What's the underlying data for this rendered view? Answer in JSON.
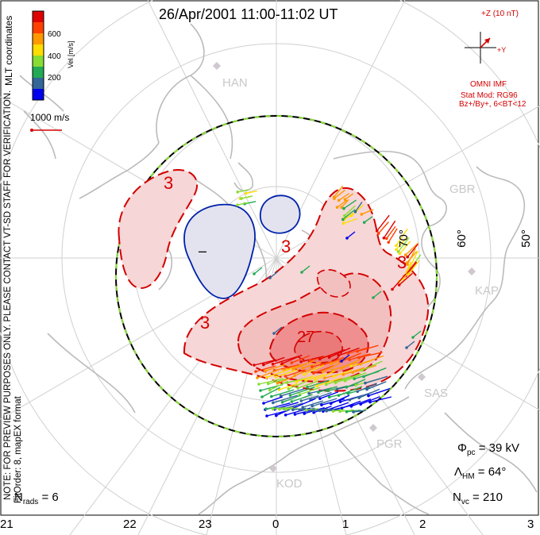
{
  "title": "26/Apr/2001 11:00-11:02 UT",
  "side_notes": {
    "coordinates": "MLT coordinates",
    "preview": "NOTE: FOR PREVIEW PURPOSES ONLY. PLEASE CONTACT VT-SD STAFF FOR VERIFICATION.",
    "fit": "FitOrder: 8, mapEX format"
  },
  "colorbar": {
    "label": "Vel [m/s]",
    "ticks": [
      "600",
      "400",
      "200"
    ],
    "colors": [
      "#e00000",
      "#ff4000",
      "#ff9900",
      "#ffdd00",
      "#88dd33",
      "#22aa55",
      "#336699",
      "#0000ee"
    ]
  },
  "vector_scale": {
    "label": "1000 m/s"
  },
  "imf": {
    "bz_label": "+Z (10 nT)",
    "by_label": "+Y",
    "source": "OMNI IMF",
    "model": "Stat Mod: RG96",
    "condition": "Bz+/By+, 6<BT<12"
  },
  "stations": [
    "HAN",
    "GBR",
    "KAP",
    "SAS",
    "PGR",
    "KOD"
  ],
  "latitude_labels": [
    "70°",
    "60°",
    "50°"
  ],
  "contours": {
    "negative_label": "–",
    "positive_labels": [
      "3",
      "3",
      "3",
      "3"
    ],
    "max_label": "27"
  },
  "stats": {
    "nrads_symbol": "N",
    "nrads_sub": "rads",
    "nrads_value": "= 6",
    "phi_symbol": "Φ",
    "phi_sub": "pc",
    "phi_value": "= 39 kV",
    "lambda_symbol": "Λ",
    "lambda_sub": "HM",
    "lambda_value": "= 64°",
    "nvc_symbol": "N",
    "nvc_sub": "vc",
    "nvc_value": "= 210"
  },
  "mlt_labels": [
    "21",
    "22",
    "23",
    "0",
    "1",
    "2",
    "3"
  ],
  "colors": {
    "positive_fill": "#f6d6d6",
    "positive_core": "#ef8f8f",
    "negative_fill": "#e3e3f0",
    "contour_red": "#d40000",
    "contour_blue": "#0022aa",
    "coast": "#bbbbbb",
    "grid": "#d0d0d0"
  }
}
